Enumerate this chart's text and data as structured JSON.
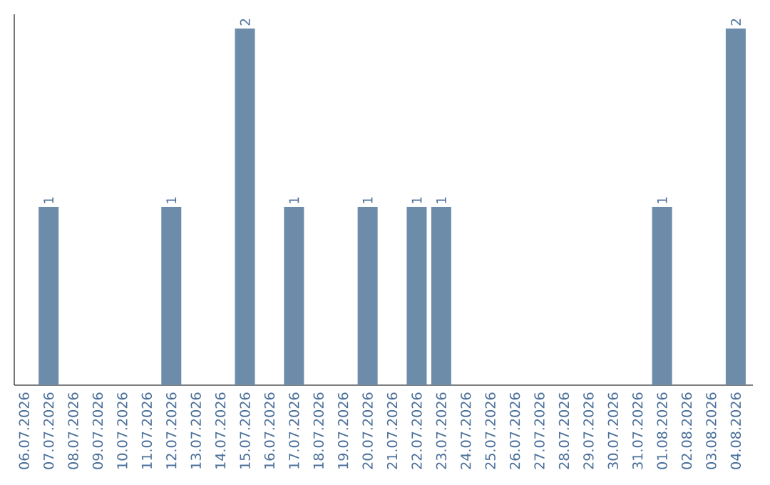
{
  "chart_data": {
    "type": "bar",
    "categories": [
      "06.07.2026",
      "07.07.2026",
      "08.07.2026",
      "09.07.2026",
      "10.07.2026",
      "11.07.2026",
      "12.07.2026",
      "13.07.2026",
      "14.07.2026",
      "15.07.2026",
      "16.07.2026",
      "17.07.2026",
      "18.07.2026",
      "19.07.2026",
      "20.07.2026",
      "21.07.2026",
      "22.07.2026",
      "23.07.2026",
      "24.07.2026",
      "25.07.2026",
      "26.07.2026",
      "27.07.2026",
      "28.07.2026",
      "29.07.2026",
      "30.07.2026",
      "31.07.2026",
      "01.08.2026",
      "02.08.2026",
      "03.08.2026",
      "04.08.2026"
    ],
    "values": [
      0,
      1,
      0,
      0,
      0,
      0,
      1,
      0,
      0,
      2,
      0,
      1,
      0,
      0,
      1,
      0,
      1,
      1,
      0,
      0,
      0,
      0,
      0,
      0,
      0,
      0,
      1,
      0,
      0,
      2
    ],
    "value_labels": [
      null,
      "1",
      null,
      null,
      null,
      null,
      "1",
      null,
      null,
      "2",
      null,
      "1",
      null,
      null,
      "1",
      null,
      "1",
      "1",
      null,
      null,
      null,
      null,
      null,
      null,
      null,
      null,
      "1",
      null,
      null,
      "2"
    ],
    "color": "#6d8caa",
    "tick_labels": "x"
  }
}
